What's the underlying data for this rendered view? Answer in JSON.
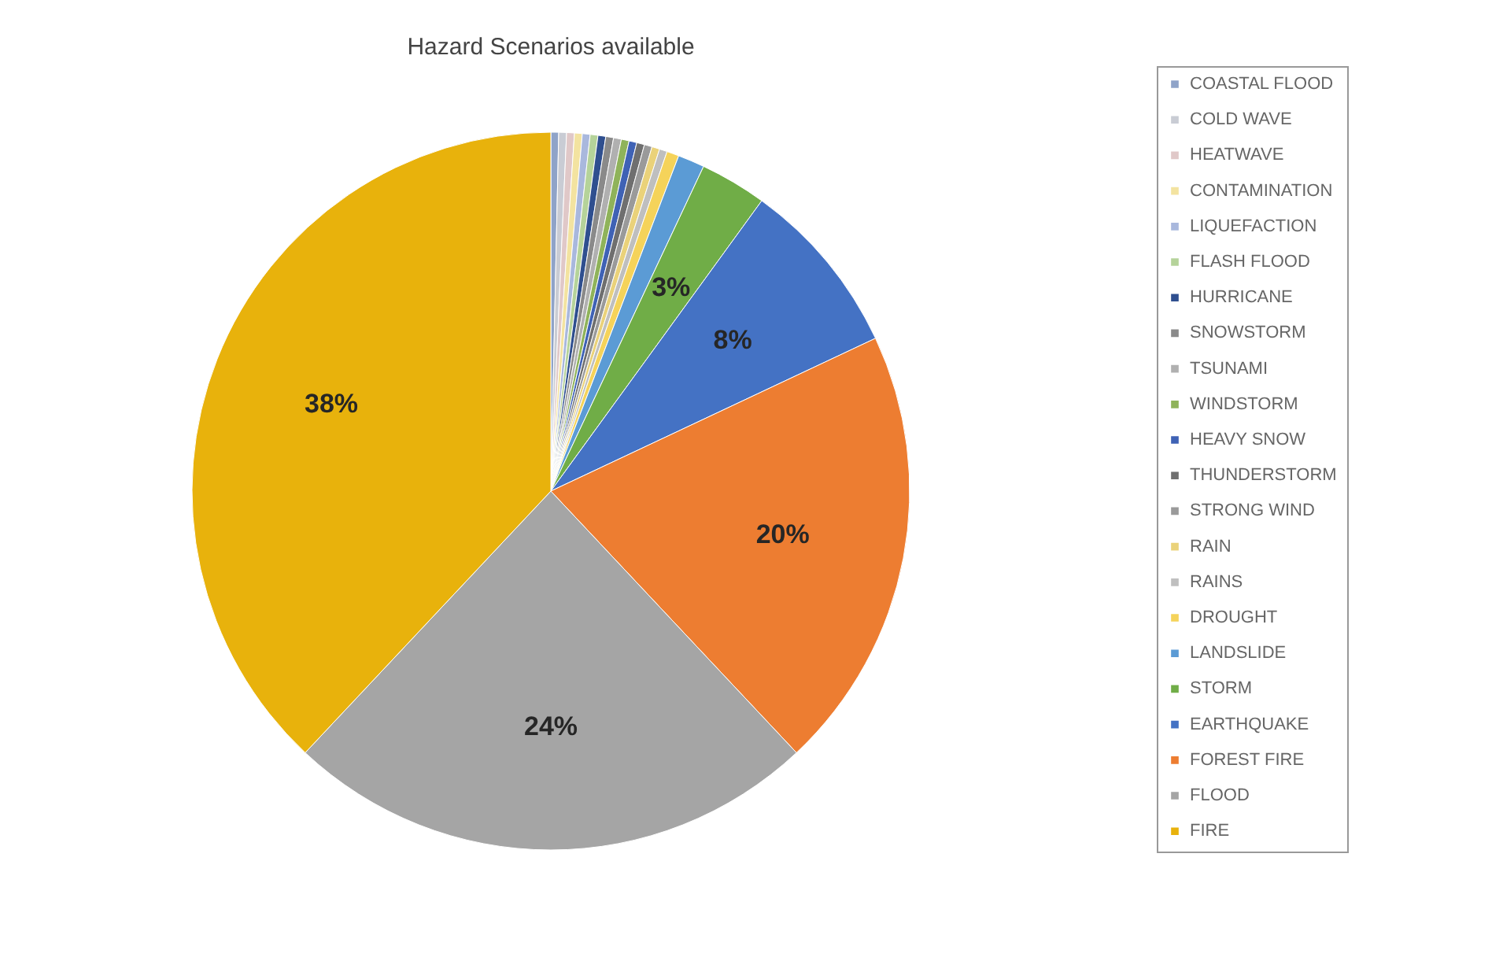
{
  "chart_data": {
    "type": "pie",
    "title": "Hazard Scenarios available",
    "categories": [
      "COASTAL FLOOD",
      "COLD WAVE",
      "HEATWAVE",
      "CONTAMINATION",
      "LIQUEFACTION",
      "FLASH FLOOD",
      "HURRICANE",
      "SNOWSTORM",
      "TSUNAMI",
      "WINDSTORM",
      "HEAVY SNOW",
      "THUNDERSTORM",
      "STRONG WIND",
      "RAIN",
      "RAINS",
      "DROUGHT",
      "LANDSLIDE",
      "STORM",
      "EARTHQUAKE",
      "FOREST FIRE",
      "FLOOD",
      "FIRE"
    ],
    "values": [
      0.35,
      0.35,
      0.35,
      0.35,
      0.35,
      0.35,
      0.35,
      0.35,
      0.35,
      0.35,
      0.35,
      0.35,
      0.35,
      0.35,
      0.35,
      0.55,
      1.2,
      3,
      8,
      20,
      24,
      38
    ],
    "colors": [
      "#8fa3c8",
      "#c9ccd4",
      "#e0c8c8",
      "#f3e3a0",
      "#a9b8dd",
      "#b5d39a",
      "#2f4f8f",
      "#8a8a8a",
      "#b0b0b0",
      "#8fb35a",
      "#3f62b5",
      "#6f6f6f",
      "#9a9a9a",
      "#ead27a",
      "#bfbfbf",
      "#f5d35a",
      "#5b9bd5",
      "#70ad47",
      "#4472c4",
      "#ed7d31",
      "#a5a5a5",
      "#e8b20c"
    ],
    "value_labels": [
      null,
      null,
      null,
      null,
      null,
      null,
      null,
      null,
      null,
      null,
      null,
      null,
      null,
      null,
      null,
      null,
      null,
      "3%",
      "8%",
      "20%",
      "24%",
      "38%"
    ],
    "legend": "right"
  }
}
